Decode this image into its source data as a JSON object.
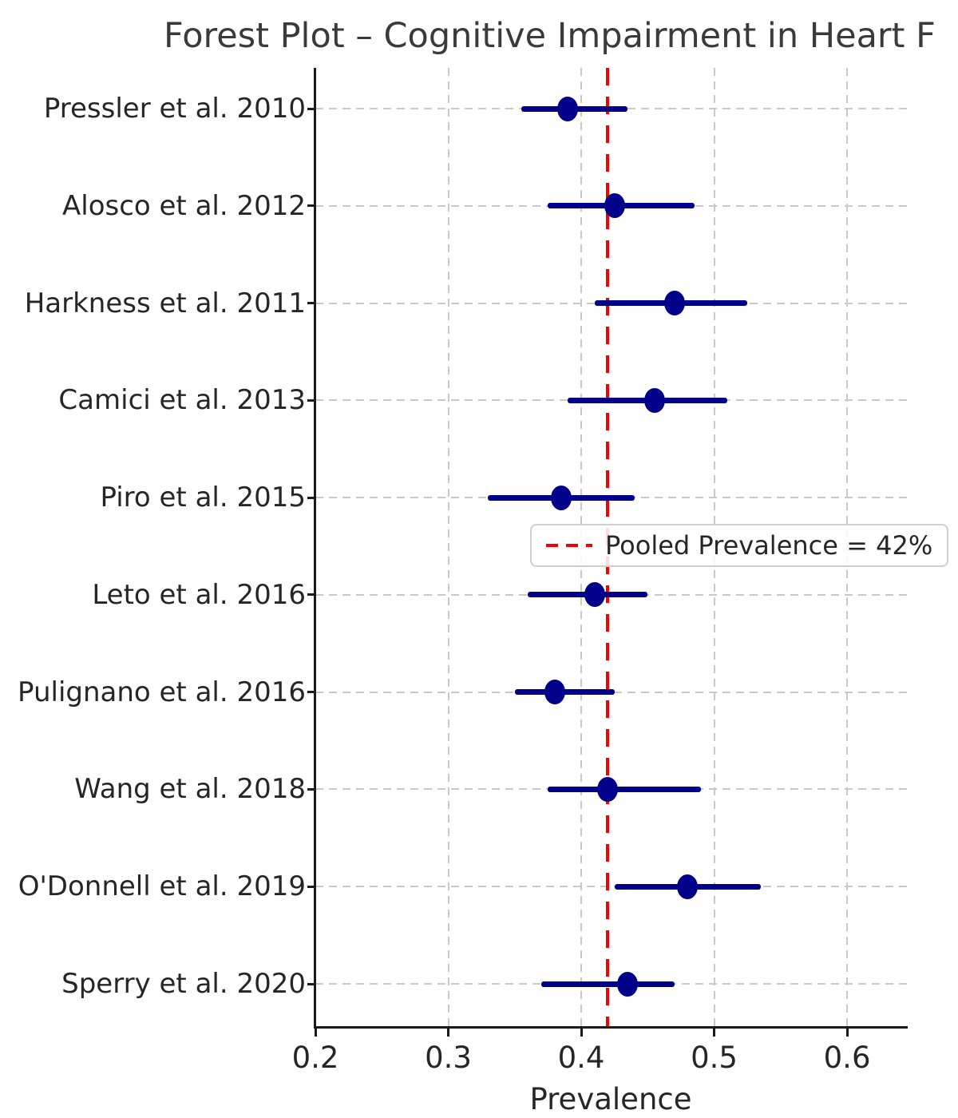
{
  "chart_data": {
    "type": "scatter",
    "variant": "forest-plot",
    "title": "Forest Plot – Cognitive Impairment in Heart F",
    "xlabel": "Prevalence",
    "xlim": [
      0.2,
      0.645
    ],
    "xticks": [
      0.2,
      0.3,
      0.4,
      0.5,
      0.6
    ],
    "xtick_labels": [
      "0.2",
      "0.3",
      "0.4",
      "0.5",
      "0.6"
    ],
    "grid": true,
    "grid_style": "dashed",
    "legend": {
      "label": "Pooled Prevalence = 42%",
      "position": "center-right"
    },
    "pooled_prevalence": 0.42,
    "studies": [
      {
        "label": "Pressler et al. 2010",
        "estimate": 0.39,
        "ci_low": 0.355,
        "ci_high": 0.435
      },
      {
        "label": "Alosco et al. 2012",
        "estimate": 0.425,
        "ci_low": 0.375,
        "ci_high": 0.485
      },
      {
        "label": "Harkness et al. 2011",
        "estimate": 0.47,
        "ci_low": 0.41,
        "ci_high": 0.525
      },
      {
        "label": "Camici et al. 2013",
        "estimate": 0.455,
        "ci_low": 0.39,
        "ci_high": 0.51
      },
      {
        "label": "Piro et al. 2015",
        "estimate": 0.385,
        "ci_low": 0.33,
        "ci_high": 0.44
      },
      {
        "label": "Leto et al. 2016",
        "estimate": 0.41,
        "ci_low": 0.36,
        "ci_high": 0.45
      },
      {
        "label": "Pulignano et al. 2016",
        "estimate": 0.38,
        "ci_low": 0.35,
        "ci_high": 0.425
      },
      {
        "label": "Wang et al. 2018",
        "estimate": 0.42,
        "ci_low": 0.375,
        "ci_high": 0.49
      },
      {
        "label": "O'Donnell et al. 2019",
        "estimate": 0.48,
        "ci_low": 0.425,
        "ci_high": 0.535
      },
      {
        "label": "Sperry et al. 2020",
        "estimate": 0.435,
        "ci_low": 0.37,
        "ci_high": 0.47
      }
    ],
    "colors": {
      "marker": "#00008b",
      "ci_bar": "#00008b",
      "pooled_line": "#ff0000",
      "grid": "#c9c9c9",
      "spine": "#1a1a1a",
      "text": "#262626",
      "title": "#3a3a3a",
      "background": "#ffffff"
    }
  }
}
